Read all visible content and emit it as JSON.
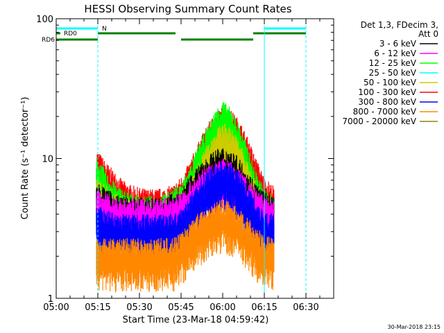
{
  "chart_data": {
    "type": "line",
    "title": "HESSI Observing Summary Count Rates",
    "xlabel": "Start Time (23-Mar-18 04:59:42)",
    "ylabel": "Count Rate (s⁻¹ detector⁻¹)",
    "y_scale": "log",
    "ylim": [
      1,
      100
    ],
    "xlim": [
      "05:00",
      "06:40"
    ],
    "x_ticks": [
      "05:00",
      "05:15",
      "05:30",
      "05:45",
      "06:00",
      "06:15",
      "06:30"
    ],
    "y_ticks": [
      "1",
      "10",
      "100"
    ],
    "legend": {
      "placement": "right",
      "header": [
        "Det 1,3, FDecim 3,",
        "Att 0"
      ],
      "entries": [
        {
          "label": "3 - 6 keV",
          "color": "#000000"
        },
        {
          "label": "6 - 12 keV",
          "color": "#ff00ff"
        },
        {
          "label": "12 - 25 keV",
          "color": "#00ff00"
        },
        {
          "label": "25 - 50 keV",
          "color": "#00ffff"
        },
        {
          "label": "50 - 100 keV",
          "color": "#cccc00"
        },
        {
          "label": "100 - 300 keV",
          "color": "#ff0000"
        },
        {
          "label": "300 - 800 keV",
          "color": "#0000ff"
        },
        {
          "label": "800 - 7000 keV",
          "color": "#ff8800"
        },
        {
          "label": "7000 - 20000 keV",
          "color": "#888800"
        }
      ]
    },
    "x": [
      "05:15",
      "05:18",
      "05:21",
      "05:24",
      "05:27",
      "05:30",
      "05:33",
      "05:36",
      "05:39",
      "05:42",
      "05:45",
      "05:48",
      "05:51",
      "05:54",
      "05:57",
      "06:00",
      "06:03",
      "06:06",
      "06:09",
      "06:12",
      "06:15",
      "06:18"
    ],
    "series": [
      {
        "name": "100 - 300 keV",
        "color": "#ff0000",
        "values": [
          8.5,
          7.0,
          6.0,
          5.2,
          4.8,
          4.6,
          4.5,
          4.5,
          4.6,
          4.8,
          5.5,
          7.0,
          9.5,
          12.5,
          15.5,
          17.5,
          16.5,
          14.0,
          10.5,
          7.5,
          5.5,
          4.8
        ]
      },
      {
        "name": "12 - 25 keV",
        "color": "#00ff00",
        "values": [
          7.5,
          6.0,
          5.0,
          4.5,
          4.2,
          4.0,
          4.0,
          4.0,
          4.2,
          4.5,
          5.0,
          6.5,
          9.0,
          12.0,
          16.0,
          19.5,
          17.0,
          13.0,
          9.0,
          6.0,
          4.6,
          4.0
        ]
      },
      {
        "name": "50 - 100 keV",
        "color": "#cccc00",
        "values": [
          5.5,
          4.8,
          4.3,
          4.0,
          3.8,
          3.7,
          3.6,
          3.6,
          3.7,
          3.9,
          4.3,
          5.2,
          6.8,
          9.0,
          11.5,
          13.5,
          12.5,
          10.0,
          7.0,
          5.0,
          4.0,
          3.6
        ]
      },
      {
        "name": "3 - 6 keV",
        "color": "#000000",
        "values": [
          5.0,
          4.5,
          4.2,
          4.0,
          3.9,
          3.9,
          3.9,
          3.9,
          4.0,
          4.2,
          4.5,
          5.5,
          6.5,
          7.5,
          8.5,
          9.0,
          8.5,
          7.5,
          6.0,
          5.0,
          4.3,
          4.0
        ]
      },
      {
        "name": "6 - 12 keV",
        "color": "#ff00ff",
        "values": [
          4.5,
          4.2,
          4.0,
          3.9,
          3.8,
          3.8,
          3.8,
          3.8,
          3.9,
          4.0,
          4.3,
          5.0,
          5.8,
          6.5,
          7.0,
          7.5,
          7.0,
          6.3,
          5.3,
          4.5,
          4.0,
          3.8
        ]
      },
      {
        "name": "300 - 800 keV",
        "color": "#0000ff",
        "values": [
          3.4,
          3.2,
          3.0,
          3.0,
          3.0,
          3.0,
          3.0,
          3.0,
          3.0,
          3.0,
          3.2,
          4.0,
          5.0,
          6.0,
          6.8,
          7.2,
          6.8,
          6.0,
          4.8,
          3.8,
          3.2,
          3.0
        ]
      },
      {
        "name": "800 - 7000 keV",
        "color": "#ff8800",
        "values": [
          2.0,
          2.0,
          2.0,
          2.0,
          2.0,
          2.0,
          2.0,
          2.0,
          2.0,
          2.0,
          2.2,
          2.6,
          3.0,
          3.3,
          3.6,
          3.8,
          3.6,
          3.2,
          2.8,
          2.4,
          2.1,
          2.0
        ]
      }
    ],
    "status_bars": {
      "labels": [
        "N",
        "RD0",
        "RD6"
      ],
      "colors": {
        "N": "#00ffff",
        "RD0": "#008000",
        "RD6": "#008000"
      },
      "segments": {
        "N": [
          [
            "05:00",
            "05:15"
          ],
          [
            "06:15",
            "06:30"
          ]
        ],
        "RD0": [
          [
            "05:00",
            "05:00"
          ],
          [
            "05:15",
            "05:43"
          ],
          [
            "06:11",
            "06:30"
          ]
        ],
        "RD6": [
          [
            "05:00",
            "05:15"
          ],
          [
            "05:45",
            "06:11"
          ]
        ]
      }
    },
    "vlines": {
      "color": "#00ffff",
      "solid": [
        "05:00",
        "06:15"
      ],
      "dashed": [
        "05:15",
        "06:30"
      ]
    }
  },
  "footer": {
    "timestamp": "30-Mar-2018 23:15"
  }
}
